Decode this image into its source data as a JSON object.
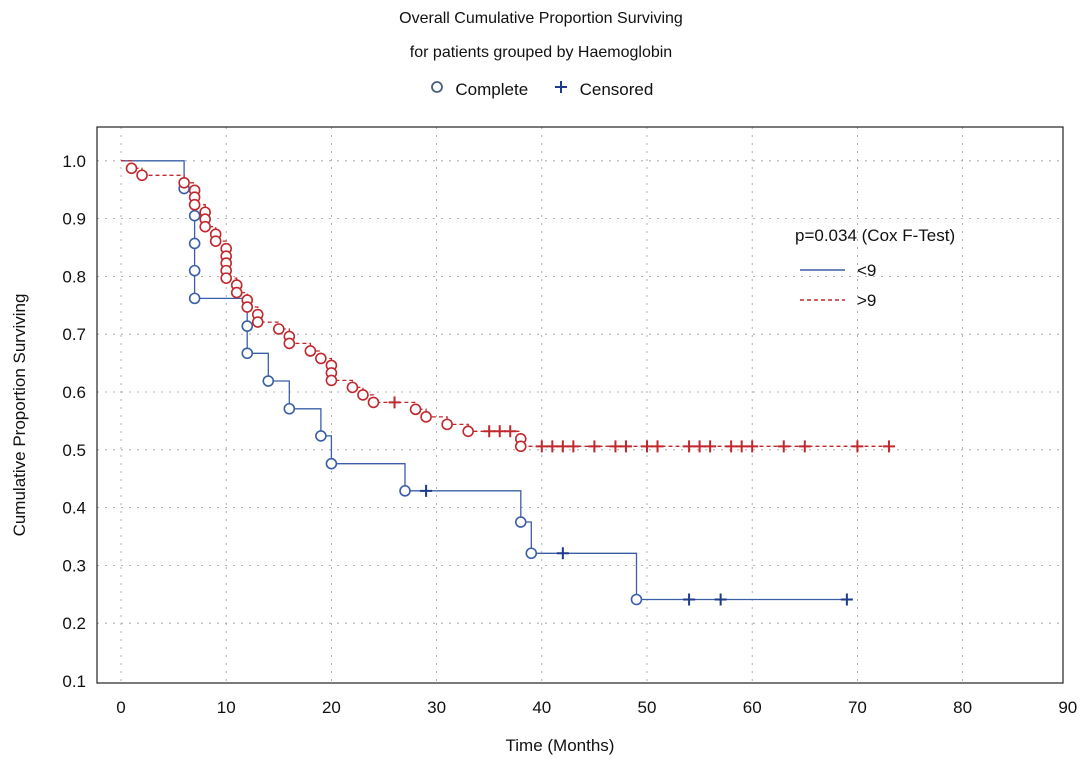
{
  "chart_data": {
    "type": "line",
    "title": "Overall Cumulative Proportion Surviving",
    "subtitle": "for patients grouped by Haemoglobin",
    "marker_legend": {
      "complete": "Complete",
      "censored": "Censored"
    },
    "xlabel": "Time (Months)",
    "ylabel": "Cumulative Proportion Surviving",
    "xlim": [
      0,
      90
    ],
    "ylim": [
      0.1,
      1.0
    ],
    "xticks": [
      "0",
      "10",
      "20",
      "30",
      "40",
      "50",
      "60",
      "70",
      "80",
      "90"
    ],
    "yticks": [
      "1.0",
      "0.9",
      "0.8",
      "0.7",
      "0.6",
      "0.5",
      "0.4",
      "0.3",
      "0.2",
      "0.1"
    ],
    "grid": true,
    "legend_position": "right",
    "annotation": "p=0.034 (Cox F-Test)",
    "series": [
      {
        "name": "<9",
        "color": "#3a5fa8",
        "line_style": "solid",
        "steps": [
          [
            0,
            1.0
          ],
          [
            6,
            0.952
          ],
          [
            7,
            0.905
          ],
          [
            7,
            0.857
          ],
          [
            7,
            0.81
          ],
          [
            7,
            0.762
          ],
          [
            12,
            0.714
          ],
          [
            12,
            0.667
          ],
          [
            14,
            0.619
          ],
          [
            16,
            0.571
          ],
          [
            19,
            0.524
          ],
          [
            20,
            0.476
          ],
          [
            27,
            0.429
          ],
          [
            38,
            0.375
          ],
          [
            39,
            0.321
          ],
          [
            49,
            0.241
          ],
          [
            69,
            0.241
          ]
        ],
        "complete": [
          [
            6,
            0.952
          ],
          [
            7,
            0.905
          ],
          [
            7,
            0.857
          ],
          [
            7,
            0.81
          ],
          [
            7,
            0.762
          ],
          [
            12,
            0.714
          ],
          [
            12,
            0.667
          ],
          [
            14,
            0.619
          ],
          [
            16,
            0.571
          ],
          [
            19,
            0.524
          ],
          [
            20,
            0.476
          ],
          [
            27,
            0.429
          ],
          [
            38,
            0.375
          ],
          [
            39,
            0.321
          ],
          [
            49,
            0.241
          ]
        ],
        "censored": [
          [
            29,
            0.429
          ],
          [
            42,
            0.321
          ],
          [
            54,
            0.241
          ],
          [
            57,
            0.241
          ],
          [
            69,
            0.241
          ]
        ]
      },
      {
        "name": ">9",
        "color": "#c0282d",
        "line_style": "dashed",
        "steps": [
          [
            0,
            1.0
          ],
          [
            1,
            0.987
          ],
          [
            2,
            0.975
          ],
          [
            6,
            0.962
          ],
          [
            7,
            0.949
          ],
          [
            7,
            0.937
          ],
          [
            7,
            0.924
          ],
          [
            8,
            0.911
          ],
          [
            8,
            0.899
          ],
          [
            8,
            0.886
          ],
          [
            9,
            0.873
          ],
          [
            9,
            0.861
          ],
          [
            10,
            0.848
          ],
          [
            10,
            0.835
          ],
          [
            10,
            0.823
          ],
          [
            10,
            0.81
          ],
          [
            10,
            0.797
          ],
          [
            11,
            0.785
          ],
          [
            11,
            0.772
          ],
          [
            12,
            0.759
          ],
          [
            12,
            0.747
          ],
          [
            13,
            0.734
          ],
          [
            13,
            0.721
          ],
          [
            15,
            0.709
          ],
          [
            16,
            0.696
          ],
          [
            16,
            0.684
          ],
          [
            18,
            0.671
          ],
          [
            19,
            0.658
          ],
          [
            20,
            0.646
          ],
          [
            20,
            0.633
          ],
          [
            20,
            0.62
          ],
          [
            22,
            0.608
          ],
          [
            23,
            0.595
          ],
          [
            24,
            0.582
          ],
          [
            28,
            0.57
          ],
          [
            29,
            0.557
          ],
          [
            31,
            0.544
          ],
          [
            33,
            0.532
          ],
          [
            38,
            0.519
          ],
          [
            38,
            0.506
          ],
          [
            73,
            0.506
          ]
        ],
        "complete": [
          [
            1,
            0.987
          ],
          [
            2,
            0.975
          ],
          [
            6,
            0.962
          ],
          [
            7,
            0.949
          ],
          [
            7,
            0.937
          ],
          [
            7,
            0.924
          ],
          [
            8,
            0.911
          ],
          [
            8,
            0.899
          ],
          [
            8,
            0.886
          ],
          [
            9,
            0.873
          ],
          [
            9,
            0.861
          ],
          [
            10,
            0.848
          ],
          [
            10,
            0.835
          ],
          [
            10,
            0.823
          ],
          [
            10,
            0.81
          ],
          [
            10,
            0.797
          ],
          [
            11,
            0.785
          ],
          [
            11,
            0.772
          ],
          [
            12,
            0.759
          ],
          [
            12,
            0.747
          ],
          [
            13,
            0.734
          ],
          [
            13,
            0.721
          ],
          [
            15,
            0.709
          ],
          [
            16,
            0.696
          ],
          [
            16,
            0.684
          ],
          [
            18,
            0.671
          ],
          [
            19,
            0.658
          ],
          [
            20,
            0.646
          ],
          [
            20,
            0.633
          ],
          [
            20,
            0.62
          ],
          [
            22,
            0.608
          ],
          [
            23,
            0.595
          ],
          [
            24,
            0.582
          ],
          [
            28,
            0.57
          ],
          [
            29,
            0.557
          ],
          [
            31,
            0.544
          ],
          [
            33,
            0.532
          ],
          [
            38,
            0.519
          ],
          [
            38,
            0.506
          ]
        ],
        "censored": [
          [
            26,
            0.582
          ],
          [
            35,
            0.532
          ],
          [
            36,
            0.532
          ],
          [
            37,
            0.532
          ],
          [
            40,
            0.506
          ],
          [
            41,
            0.506
          ],
          [
            42,
            0.506
          ],
          [
            43,
            0.506
          ],
          [
            45,
            0.506
          ],
          [
            47,
            0.506
          ],
          [
            48,
            0.506
          ],
          [
            50,
            0.506
          ],
          [
            51,
            0.506
          ],
          [
            54,
            0.506
          ],
          [
            55,
            0.506
          ],
          [
            56,
            0.506
          ],
          [
            58,
            0.506
          ],
          [
            59,
            0.506
          ],
          [
            60,
            0.506
          ],
          [
            63,
            0.506
          ],
          [
            65,
            0.506
          ],
          [
            70,
            0.506
          ],
          [
            73,
            0.506
          ]
        ]
      }
    ]
  }
}
